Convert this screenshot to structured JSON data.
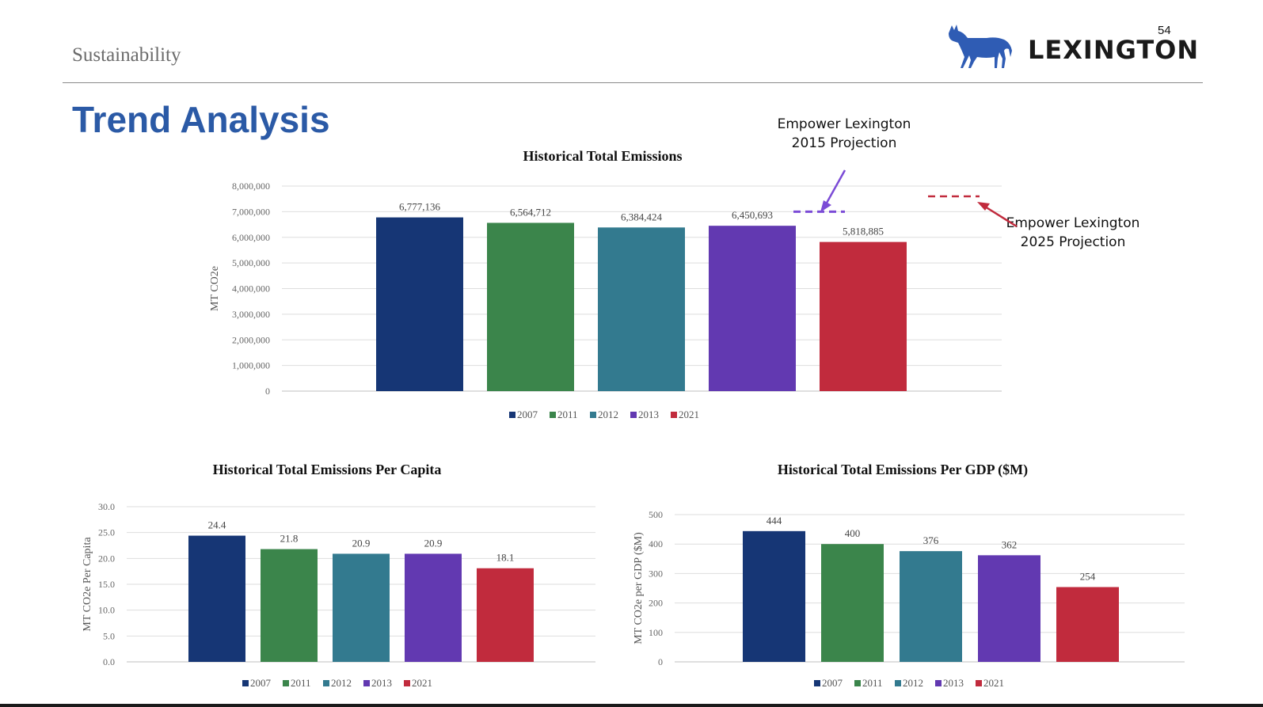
{
  "header": {
    "section": "Sustainability",
    "page_number": "54",
    "logo_text": "LEXINGTON",
    "title": "Trend Analysis"
  },
  "callouts": {
    "proj2015": [
      "Empower Lexington",
      "2015 Projection"
    ],
    "proj2025": [
      "Empower Lexington",
      "2025 Projection"
    ]
  },
  "colors": {
    "2007": "#163675",
    "2011": "#3b854b",
    "2012": "#337a8f",
    "2013": "#6239b1",
    "2021": "#c12b3d",
    "title_blue": "#2b5aa6",
    "proj2015": "#7b4bd6",
    "proj2025": "#c12b3d"
  },
  "chart_data": [
    {
      "id": "total",
      "type": "bar",
      "title": "Historical Total Emissions",
      "ylabel": "MT CO2e",
      "xlabel": "",
      "categories": [
        "2007",
        "2011",
        "2012",
        "2013",
        "2021"
      ],
      "values": [
        6777136,
        6564712,
        6384424,
        6450693,
        5818885
      ],
      "value_labels": [
        "6,777,136",
        "6,564,712",
        "6,384,424",
        "6,450,693",
        "5,818,885"
      ],
      "ylim": [
        0,
        8000000
      ],
      "yticks": [
        0,
        1000000,
        2000000,
        3000000,
        4000000,
        5000000,
        6000000,
        7000000,
        8000000
      ],
      "ytick_labels": [
        "0",
        "1,000,000",
        "2,000,000",
        "3,000,000",
        "4,000,000",
        "5,000,000",
        "6,000,000",
        "7,000,000",
        "8,000,000"
      ],
      "legend": [
        "2007",
        "2011",
        "2012",
        "2013",
        "2021"
      ],
      "legend_position": "bottom",
      "projections": [
        {
          "name": "Empower Lexington 2015 Projection",
          "value": 7000000
        },
        {
          "name": "Empower Lexington 2025 Projection",
          "value": 7600000
        }
      ]
    },
    {
      "id": "percapita",
      "type": "bar",
      "title": "Historical Total Emissions Per Capita",
      "ylabel": "MT CO2e Per Capita",
      "xlabel": "",
      "categories": [
        "2007",
        "2011",
        "2012",
        "2013",
        "2021"
      ],
      "values": [
        24.4,
        21.8,
        20.9,
        20.9,
        18.1
      ],
      "value_labels": [
        "24.4",
        "21.8",
        "20.9",
        "20.9",
        "18.1"
      ],
      "ylim": [
        0,
        30
      ],
      "yticks": [
        0,
        5,
        10,
        15,
        20,
        25,
        30
      ],
      "ytick_labels": [
        "0.0",
        "5.0",
        "10.0",
        "15.0",
        "20.0",
        "25.0",
        "30.0"
      ],
      "legend": [
        "2007",
        "2011",
        "2012",
        "2013",
        "2021"
      ],
      "legend_position": "bottom"
    },
    {
      "id": "pergdp",
      "type": "bar",
      "title": "Historical Total Emissions Per GDP ($M)",
      "ylabel": "MT CO2e per GDP ($M)",
      "xlabel": "",
      "categories": [
        "2007",
        "2011",
        "2012",
        "2013",
        "2021"
      ],
      "values": [
        444,
        400,
        376,
        362,
        254
      ],
      "value_labels": [
        "444",
        "400",
        "376",
        "362",
        "254"
      ],
      "ylim": [
        0,
        500
      ],
      "yticks": [
        0,
        100,
        200,
        300,
        400,
        500
      ],
      "ytick_labels": [
        "0",
        "100",
        "200",
        "300",
        "400",
        "500"
      ],
      "legend": [
        "2007",
        "2011",
        "2012",
        "2013",
        "2021"
      ],
      "legend_position": "bottom"
    }
  ]
}
